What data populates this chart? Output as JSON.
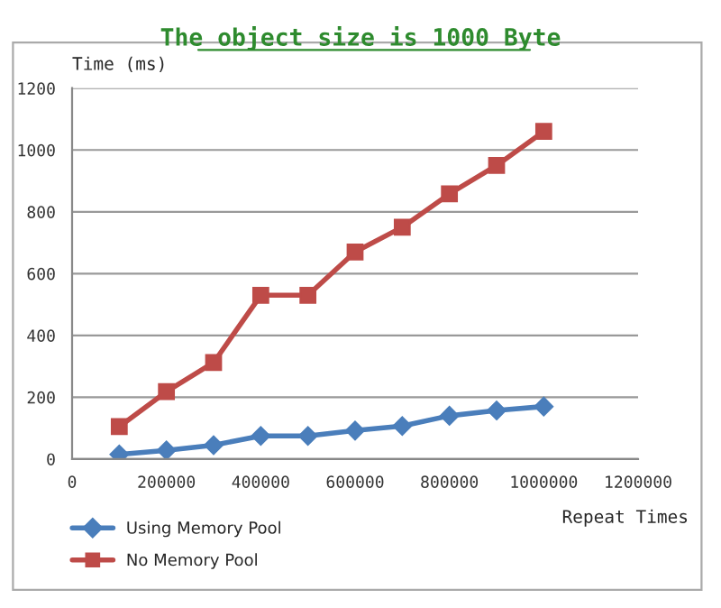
{
  "chart_data": {
    "type": "line",
    "title": "The object size is 1000 Byte",
    "xlabel": "Repeat Times",
    "ylabel": "Time (ms)",
    "x": [
      100000,
      200000,
      300000,
      400000,
      500000,
      600000,
      700000,
      800000,
      900000,
      1000000
    ],
    "series": [
      {
        "name": "Using Memory Pool",
        "color": "#4a7ebb",
        "marker": "diamond",
        "values": [
          15,
          28,
          45,
          75,
          75,
          92,
          107,
          140,
          157,
          170
        ]
      },
      {
        "name": "No Memory Pool",
        "color": "#be4b48",
        "marker": "square",
        "values": [
          105,
          218,
          312,
          530,
          530,
          670,
          750,
          858,
          950,
          1060
        ]
      }
    ],
    "xlim": [
      0,
      1200000
    ],
    "xticks": [
      0,
      200000,
      400000,
      600000,
      800000,
      1000000,
      1200000
    ],
    "ylim": [
      0,
      1200
    ],
    "yticks": [
      0,
      200,
      400,
      600,
      800,
      1000,
      1200
    ],
    "grid": "y",
    "legend": "bottom left",
    "line_style": "solid"
  }
}
